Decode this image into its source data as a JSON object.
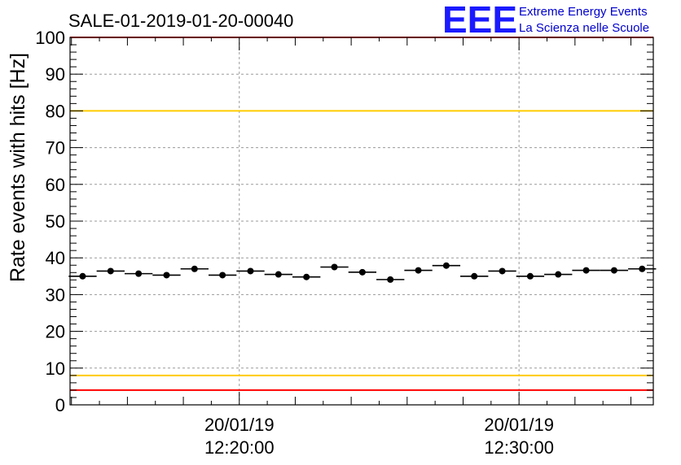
{
  "header": {
    "title": "SALE-01-2019-01-20-00040",
    "logo_text": "EEE",
    "logo_line1": "Extreme Energy Events",
    "logo_line2": "La Scienza nelle Scuole"
  },
  "chart_data": {
    "type": "scatter",
    "title": "SALE-01-2019-01-20-00040",
    "xlabel": "",
    "ylabel": "Rate events with hits [Hz]",
    "ylim": [
      0,
      100
    ],
    "yticks": [
      0,
      10,
      20,
      30,
      40,
      50,
      60,
      70,
      80,
      90,
      100
    ],
    "xlim_minutes": [
      13.95,
      34.8
    ],
    "xticks": [
      {
        "minute": 20,
        "date": "20/01/19",
        "time": "12:20:00"
      },
      {
        "minute": 30,
        "date": "20/01/19",
        "time": "12:30:00"
      }
    ],
    "grid": true,
    "bin_width_minutes": 1,
    "series": [
      {
        "name": "rate",
        "marker": "circle",
        "color": "#000000",
        "x_minutes": [
          14.4,
          15.4,
          16.4,
          17.4,
          18.4,
          19.4,
          20.4,
          21.4,
          22.4,
          23.4,
          24.4,
          25.4,
          26.4,
          27.4,
          28.4,
          29.4,
          30.4,
          31.4,
          32.4,
          33.4,
          34.4
        ],
        "values": [
          35.0,
          36.4,
          35.7,
          35.3,
          37.0,
          35.3,
          36.4,
          35.5,
          34.8,
          37.5,
          36.1,
          34.1,
          36.6,
          37.9,
          35.0,
          36.4,
          35.0,
          35.5,
          36.6,
          36.6,
          37.0
        ]
      }
    ],
    "reference_lines": [
      {
        "name": "upper-red-limit",
        "value": 100,
        "color": "#ff0000"
      },
      {
        "name": "upper-yellow-limit",
        "value": 80,
        "color": "#ffcc00"
      },
      {
        "name": "lower-yellow-limit",
        "value": 8,
        "color": "#ffcc00"
      },
      {
        "name": "lower-red-limit",
        "value": 4,
        "color": "#ff0000"
      }
    ]
  }
}
